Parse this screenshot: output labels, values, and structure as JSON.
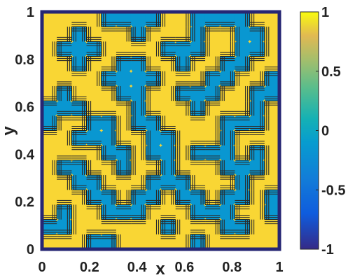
{
  "chart_data": {
    "type": "heatmap",
    "title": "",
    "xlabel": "x",
    "ylabel": "y",
    "xlim": [
      0,
      1
    ],
    "ylim": [
      0,
      1
    ],
    "xticks": [
      "0",
      "0.2",
      "0.4",
      "0.6",
      "0.8",
      "1"
    ],
    "yticks": [
      "0",
      "0.2",
      "0.4",
      "0.6",
      "0.8",
      "1"
    ],
    "colorbar": {
      "range": [
        -1,
        1
      ],
      "ticks": [
        "1",
        "0.5",
        "0",
        "-0.5",
        "-1"
      ],
      "colormap": "parula"
    },
    "contours": true,
    "grid": false,
    "grid_size": [
      16,
      16
    ],
    "z": [
      [
        1,
        1,
        1,
        1,
        -1,
        -1,
        -1,
        -1,
        1,
        1,
        -1,
        -1,
        -1,
        -1,
        1,
        1
      ],
      [
        1,
        1,
        -1,
        1,
        1,
        1,
        -1,
        1,
        1,
        1,
        -1,
        1,
        1,
        -1,
        -1,
        1
      ],
      [
        1,
        -1,
        -1,
        -1,
        1,
        1,
        1,
        1,
        -1,
        -1,
        -1,
        1,
        1,
        -1,
        -1,
        1
      ],
      [
        1,
        1,
        -1,
        1,
        1,
        -1,
        -1,
        1,
        1,
        -1,
        1,
        1,
        -1,
        -1,
        1,
        1
      ],
      [
        1,
        1,
        1,
        1,
        -1,
        -1,
        -1,
        -1,
        1,
        1,
        1,
        -1,
        -1,
        1,
        1,
        -1
      ],
      [
        1,
        -1,
        1,
        1,
        1,
        -1,
        -1,
        1,
        1,
        -1,
        -1,
        -1,
        1,
        1,
        -1,
        -1
      ],
      [
        -1,
        -1,
        -1,
        1,
        1,
        1,
        -1,
        1,
        1,
        1,
        -1,
        1,
        1,
        1,
        -1,
        1
      ],
      [
        -1,
        1,
        1,
        -1,
        -1,
        1,
        -1,
        -1,
        1,
        1,
        1,
        1,
        -1,
        -1,
        -1,
        1
      ],
      [
        1,
        1,
        -1,
        -1,
        -1,
        1,
        1,
        -1,
        -1,
        1,
        1,
        1,
        -1,
        1,
        1,
        1
      ],
      [
        1,
        1,
        1,
        1,
        -1,
        -1,
        1,
        -1,
        -1,
        1,
        -1,
        -1,
        -1,
        1,
        -1,
        1
      ],
      [
        1,
        -1,
        -1,
        1,
        1,
        -1,
        1,
        1,
        -1,
        1,
        1,
        1,
        -1,
        -1,
        -1,
        1
      ],
      [
        1,
        1,
        -1,
        -1,
        1,
        1,
        1,
        -1,
        -1,
        -1,
        1,
        1,
        1,
        -1,
        1,
        1
      ],
      [
        1,
        1,
        1,
        -1,
        -1,
        1,
        -1,
        -1,
        1,
        -1,
        -1,
        1,
        -1,
        -1,
        1,
        -1
      ],
      [
        1,
        -1,
        1,
        1,
        -1,
        -1,
        -1,
        1,
        1,
        1,
        -1,
        -1,
        -1,
        1,
        1,
        -1
      ],
      [
        -1,
        -1,
        1,
        1,
        1,
        1,
        1,
        1,
        -1,
        1,
        1,
        1,
        -1,
        -1,
        1,
        1
      ],
      [
        1,
        1,
        1,
        -1,
        -1,
        1,
        1,
        1,
        1,
        1,
        -1,
        1,
        1,
        1,
        1,
        1
      ]
    ]
  }
}
